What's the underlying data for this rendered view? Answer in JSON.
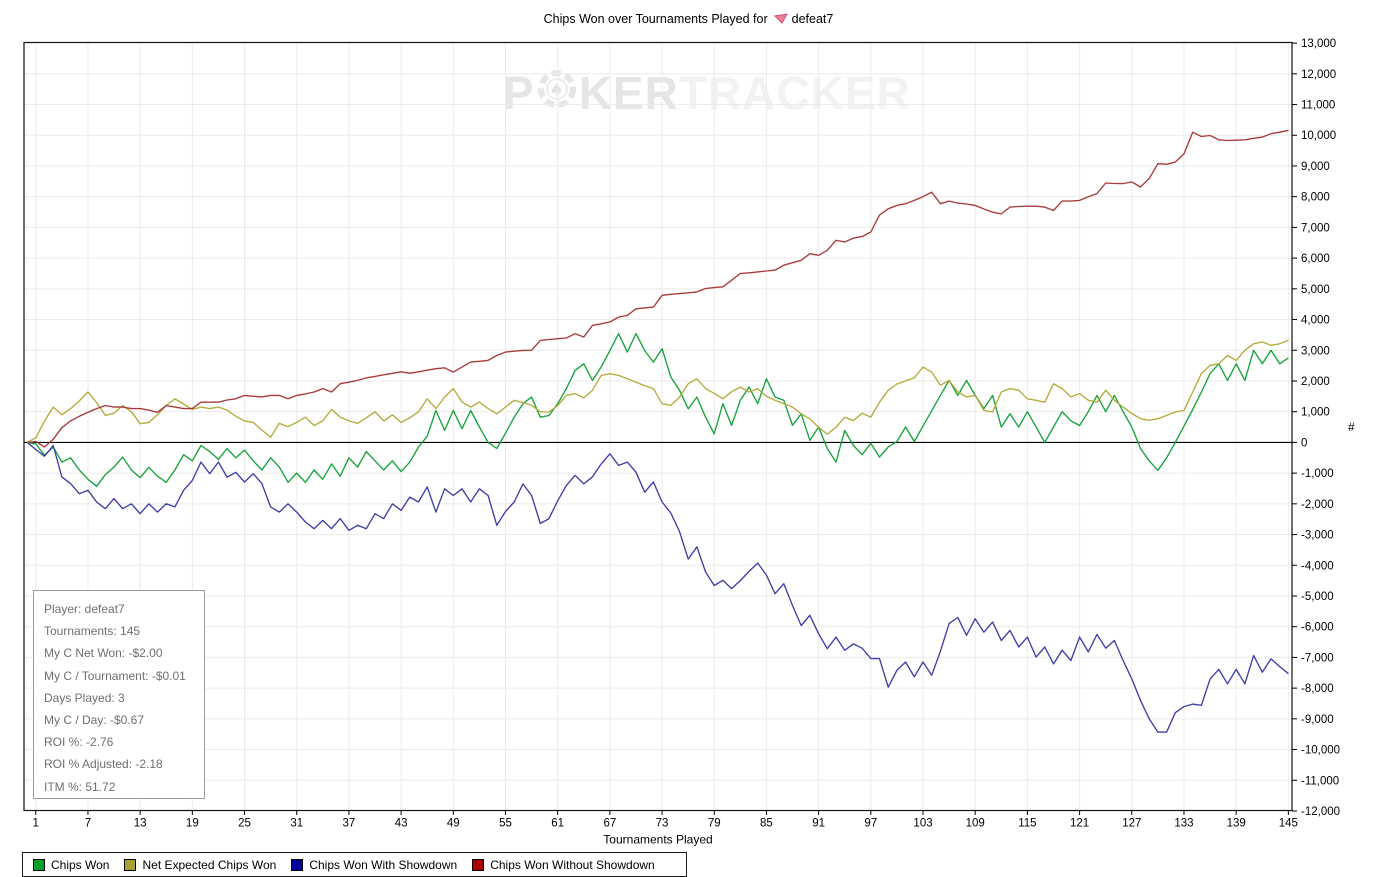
{
  "title": {
    "text_before_icon": "Chips Won over Tournaments Played for",
    "site_icon": "red-suit-site-icon",
    "player": "defeat7"
  },
  "watermark": {
    "part1": "P",
    "part2": "KER",
    "part3": "TRACKER",
    "chip_icon": "poker-chip-icon"
  },
  "stats_box": {
    "lines": [
      "Player: defeat7",
      "Tournaments: 145",
      "My C Net Won: -$2.00",
      "My C / Tournament: -$0.01",
      "Days Played: 3",
      "My C / Day: -$0.67",
      "ROI %: -2.76",
      "ROI % Adjusted: -2.18",
      "ITM %: 51.72"
    ]
  },
  "axes": {
    "x": {
      "label": "Tournaments Played",
      "tick_values": [
        1,
        7,
        13,
        19,
        25,
        31,
        37,
        43,
        49,
        55,
        61,
        67,
        73,
        79,
        85,
        91,
        97,
        103,
        109,
        115,
        121,
        127,
        133,
        139,
        145
      ]
    },
    "y": {
      "unit_label": "#",
      "min": -12000,
      "max": 13000,
      "step": 1000,
      "tick_labels": [
        "13,000",
        "12,000",
        "11,000",
        "10,000",
        "9,000",
        "8,000",
        "7,000",
        "6,000",
        "5,000",
        "4,000",
        "3,000",
        "2,000",
        "1,000",
        "0",
        "-1,000",
        "-2,000",
        "-3,000",
        "-4,000",
        "-5,000",
        "-6,000",
        "-7,000",
        "-8,000",
        "-9,000",
        "-10,000",
        "-11,000",
        "-12,000"
      ]
    }
  },
  "colors": {
    "grid": "#ebebeb",
    "zero_line": "#000000",
    "frame": "#111111",
    "background": "#ffffff",
    "watermark_dark": "#e5e5e5",
    "watermark_light": "#f2f2f2",
    "stats_text": "#6f6f6f",
    "title_icon_fill": "#ec8296",
    "title_icon_stroke": "#c2566b"
  },
  "chart_data": {
    "type": "line",
    "title": "Chips Won over Tournaments Played for defeat7",
    "xlabel": "Tournaments Played",
    "ylabel": "#",
    "x_start": 0,
    "x_end": 145,
    "x_note": "each series has 146 points for tournaments 0..145; origin point (0,0) included",
    "ylim": [
      -12000,
      13000
    ],
    "grid": true,
    "legend_position": "bottom",
    "series": [
      {
        "name": "Chips Won",
        "color": "#17A33C",
        "swatch_color": "#00A02C",
        "values": [
          0,
          -50,
          -420,
          -150,
          -640,
          -500,
          -900,
          -1200,
          -1430,
          -1050,
          -800,
          -480,
          -900,
          -1150,
          -810,
          -1100,
          -1300,
          -900,
          -400,
          -600,
          -100,
          -300,
          -550,
          -200,
          -500,
          -250,
          -600,
          -900,
          -500,
          -800,
          -1300,
          -1000,
          -1300,
          -900,
          -1200,
          -700,
          -1100,
          -500,
          -800,
          -300,
          -600,
          -900,
          -600,
          -950,
          -640,
          -150,
          200,
          1040,
          390,
          1040,
          445,
          1040,
          500,
          0,
          -200,
          300,
          820,
          1260,
          1475,
          820,
          875,
          1260,
          1750,
          2345,
          2560,
          2020,
          2455,
          2990,
          3540,
          2940,
          3540,
          2990,
          2615,
          3050,
          2130,
          1700,
          1095,
          1475,
          820,
          280,
          1260,
          555,
          1370,
          1800,
          1260,
          2070,
          1475,
          1370,
          555,
          930,
          65,
          500,
          -200,
          -640,
          390,
          -100,
          -400,
          -30,
          -480,
          -150,
          30,
          500,
          30,
          530,
          1030,
          1530,
          2020,
          1530,
          2020,
          1530,
          1100,
          1530,
          500,
          930,
          500,
          1000,
          500,
          0,
          500,
          1000,
          700,
          550,
          1000,
          1530,
          1000,
          1530,
          1000,
          500,
          -200,
          -600,
          -910,
          -500,
          0,
          530,
          1070,
          1640,
          2240,
          2560,
          2020,
          2560,
          2020,
          3000,
          2560,
          3000,
          2560,
          2750
        ]
      },
      {
        "name": "Net Expected Chips Won",
        "color": "#B5AB3C",
        "swatch_color": "#A9A032",
        "values": [
          0,
          150,
          700,
          1150,
          900,
          1100,
          1350,
          1640,
          1300,
          880,
          950,
          1200,
          1000,
          610,
          650,
          900,
          1200,
          1420,
          1250,
          1075,
          1150,
          1100,
          1150,
          1050,
          850,
          700,
          650,
          400,
          170,
          620,
          510,
          650,
          825,
          550,
          700,
          1075,
          825,
          700,
          620,
          800,
          1000,
          700,
          900,
          650,
          800,
          1000,
          1420,
          1100,
          1475,
          1750,
          1315,
          1150,
          1315,
          1100,
          930,
          1150,
          1370,
          1300,
          1205,
          1000,
          990,
          1200,
          1530,
          1585,
          1450,
          1700,
          2180,
          2235,
          2180,
          2070,
          1960,
          1850,
          1750,
          1260,
          1205,
          1475,
          1910,
          2070,
          1750,
          1600,
          1420,
          1650,
          1800,
          1640,
          1750,
          1500,
          1370,
          1260,
          1150,
          930,
          765,
          490,
          270,
          490,
          820,
          710,
          950,
          825,
          1310,
          1700,
          1900,
          2000,
          2100,
          2450,
          2290,
          1860,
          2020,
          1640,
          1480,
          1530,
          1040,
          990,
          1640,
          1750,
          1700,
          1420,
          1370,
          1310,
          1910,
          1750,
          1480,
          1590,
          1370,
          1310,
          1700,
          1370,
          1150,
          940,
          770,
          720,
          770,
          880,
          990,
          1040,
          1640,
          2240,
          2510,
          2560,
          2830,
          2670,
          3000,
          3210,
          3270,
          3160,
          3210,
          3320
        ]
      },
      {
        "name": "Chips Won With Showdown",
        "color": "#3E3EA8",
        "swatch_color": "#000099",
        "values": [
          0,
          -230,
          -450,
          -100,
          -1130,
          -1340,
          -1670,
          -1560,
          -1940,
          -2160,
          -1830,
          -2160,
          -2000,
          -2320,
          -2000,
          -2270,
          -2000,
          -2100,
          -1560,
          -1240,
          -640,
          -1020,
          -640,
          -1130,
          -975,
          -1290,
          -1020,
          -1340,
          -2100,
          -2270,
          -2000,
          -2270,
          -2590,
          -2810,
          -2540,
          -2810,
          -2480,
          -2865,
          -2700,
          -2810,
          -2320,
          -2480,
          -2000,
          -2215,
          -1780,
          -1940,
          -1450,
          -2270,
          -1510,
          -1730,
          -1510,
          -1940,
          -1510,
          -1730,
          -2700,
          -2250,
          -1940,
          -1350,
          -1730,
          -2640,
          -2480,
          -1900,
          -1400,
          -1070,
          -1350,
          -1120,
          -700,
          -370,
          -750,
          -640,
          -970,
          -1620,
          -1290,
          -1940,
          -2300,
          -2900,
          -3800,
          -3400,
          -4220,
          -4660,
          -4490,
          -4760,
          -4500,
          -4200,
          -3930,
          -4320,
          -4925,
          -4600,
          -5310,
          -5960,
          -5630,
          -6230,
          -6715,
          -6340,
          -6770,
          -6560,
          -6700,
          -7040,
          -7040,
          -7970,
          -7420,
          -7150,
          -7630,
          -7150,
          -7580,
          -6800,
          -5900,
          -5700,
          -6280,
          -5740,
          -6180,
          -5850,
          -6450,
          -6120,
          -6660,
          -6340,
          -6990,
          -6660,
          -7210,
          -6770,
          -7100,
          -6340,
          -6820,
          -6250,
          -6700,
          -6450,
          -7100,
          -7700,
          -8400,
          -9000,
          -9430,
          -9430,
          -8800,
          -8600,
          -8520,
          -8560,
          -7700,
          -7390,
          -7860,
          -7390,
          -7860,
          -6940,
          -7480,
          -7050,
          -7300,
          -7530
        ]
      },
      {
        "name": "Chips Won Without Showdown",
        "color": "#A83A3A",
        "swatch_color": "#AA0000",
        "values": [
          0,
          30,
          -150,
          100,
          480,
          700,
          850,
          980,
          1100,
          1200,
          1150,
          1150,
          1100,
          1100,
          1050,
          980,
          1200,
          1150,
          1100,
          1100,
          1310,
          1310,
          1310,
          1380,
          1420,
          1530,
          1500,
          1480,
          1530,
          1530,
          1420,
          1530,
          1580,
          1640,
          1750,
          1640,
          1910,
          1960,
          2020,
          2100,
          2150,
          2200,
          2250,
          2300,
          2250,
          2300,
          2350,
          2400,
          2430,
          2290,
          2450,
          2615,
          2640,
          2670,
          2830,
          2940,
          2970,
          2995,
          3000,
          3320,
          3350,
          3375,
          3400,
          3540,
          3430,
          3810,
          3860,
          3920,
          4080,
          4135,
          4350,
          4380,
          4405,
          4790,
          4820,
          4845,
          4870,
          4900,
          5010,
          5040,
          5065,
          5280,
          5500,
          5520,
          5550,
          5580,
          5610,
          5770,
          5850,
          5930,
          6145,
          6090,
          6255,
          6580,
          6525,
          6650,
          6700,
          6850,
          7400,
          7605,
          7715,
          7770,
          7880,
          8000,
          8150,
          7770,
          7855,
          7790,
          7760,
          7715,
          7600,
          7495,
          7440,
          7660,
          7680,
          7690,
          7690,
          7660,
          7550,
          7855,
          7860,
          7880,
          8000,
          8100,
          8445,
          8430,
          8425,
          8480,
          8315,
          8590,
          9075,
          9055,
          9130,
          9400,
          10100,
          9960,
          9990,
          9850,
          9830,
          9840,
          9850,
          9900,
          9940,
          10050,
          10100,
          10160
        ]
      }
    ]
  },
  "legend": {
    "items": [
      {
        "label": "Chips Won"
      },
      {
        "label": "Net Expected Chips Won"
      },
      {
        "label": "Chips Won With Showdown"
      },
      {
        "label": "Chips Won Without Showdown"
      }
    ]
  }
}
